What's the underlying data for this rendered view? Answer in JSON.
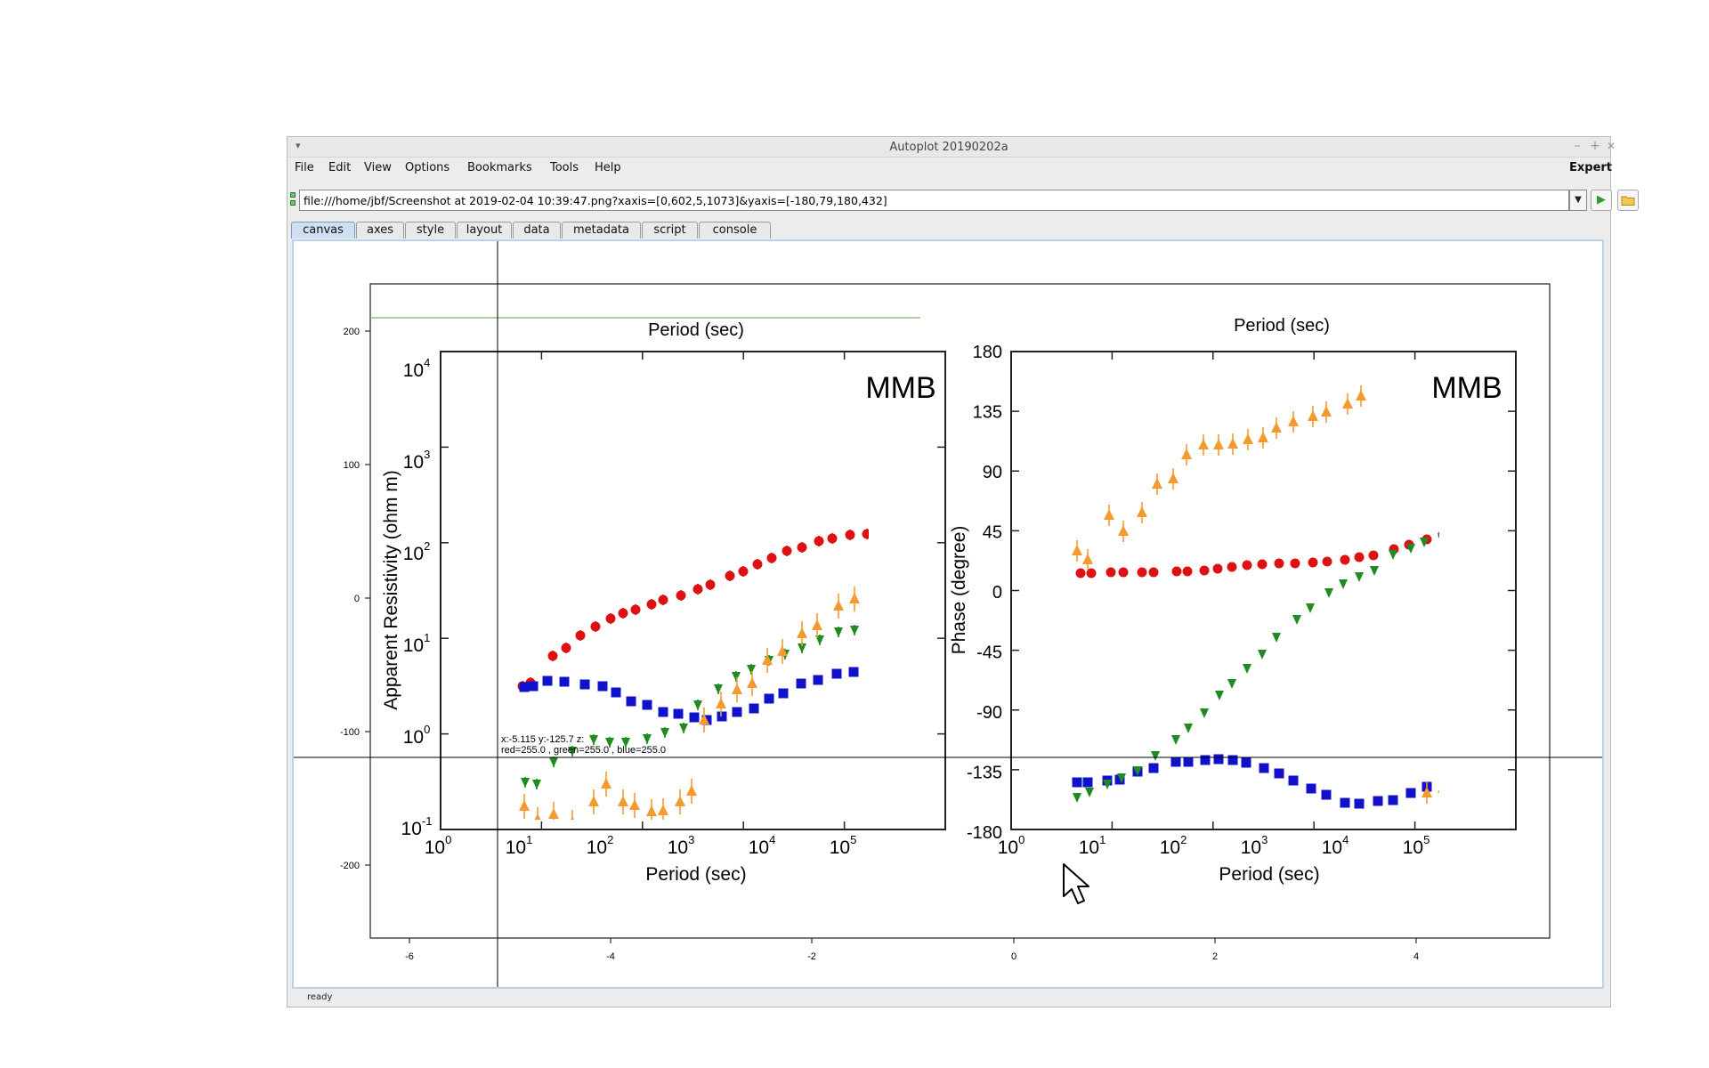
{
  "window": {
    "title": "Autoplot 20190202a",
    "controls": {
      "minimize": "–",
      "maximize": "+",
      "close": "✕"
    }
  },
  "menu": {
    "items": [
      "File",
      "Edit",
      "View",
      "Options",
      "Bookmarks",
      "Tools",
      "Help"
    ],
    "right": "Expert"
  },
  "url_bar": {
    "value": "file:///home/jbf/Screenshot at 2019-02-04 10:39:47.png?xaxis=[0,602,5,1073]&yaxis=[-180,79,180,432]",
    "dropdown_icon": "chevron-down-icon",
    "go_icon": "play-icon",
    "browse_icon": "folder-icon"
  },
  "tabs": [
    "canvas",
    "axes",
    "style",
    "layout",
    "data",
    "metadata",
    "script",
    "console"
  ],
  "active_tab": "canvas",
  "plot": {
    "x_ticks": [
      "-6",
      "-4",
      "-2",
      "0",
      "2",
      "4"
    ],
    "y_ticks": [
      "200",
      "100",
      "0",
      "-100",
      "-200"
    ],
    "readout_line1": "x:-5.115  y:-125.7  z:",
    "readout_line2": "red=255.0 , green=255.0 , blue=255.0"
  },
  "image_content": {
    "left_panel": {
      "top_label": "Period (sec)",
      "x_label": "Period (sec)",
      "y_label": "Apparent Resistivity (ohm m)",
      "site": "MMB",
      "x_tick_exponents": [
        "0",
        "1",
        "2",
        "3",
        "4",
        "5"
      ],
      "y_tick_exponents": [
        "-1",
        "0",
        "1",
        "2",
        "3",
        "4"
      ],
      "tick_base": "10"
    },
    "right_panel": {
      "top_label": "Period (sec)",
      "x_label": "Period (sec)",
      "y_label": "Phase (degree)",
      "site": "MMB",
      "x_tick_exponents": [
        "0",
        "1",
        "2",
        "3",
        "4",
        "5"
      ],
      "y_ticks": [
        "180",
        "135",
        "90",
        "45",
        "0",
        "-45",
        "-90",
        "-135",
        "-180"
      ],
      "tick_base": "10"
    }
  },
  "colors": {
    "red": "#dd1111",
    "blue": "#1111cc",
    "green": "#1e8c1e",
    "orange": "#f59a2e",
    "tab_active": "#cfe0f2"
  },
  "status": "ready"
}
